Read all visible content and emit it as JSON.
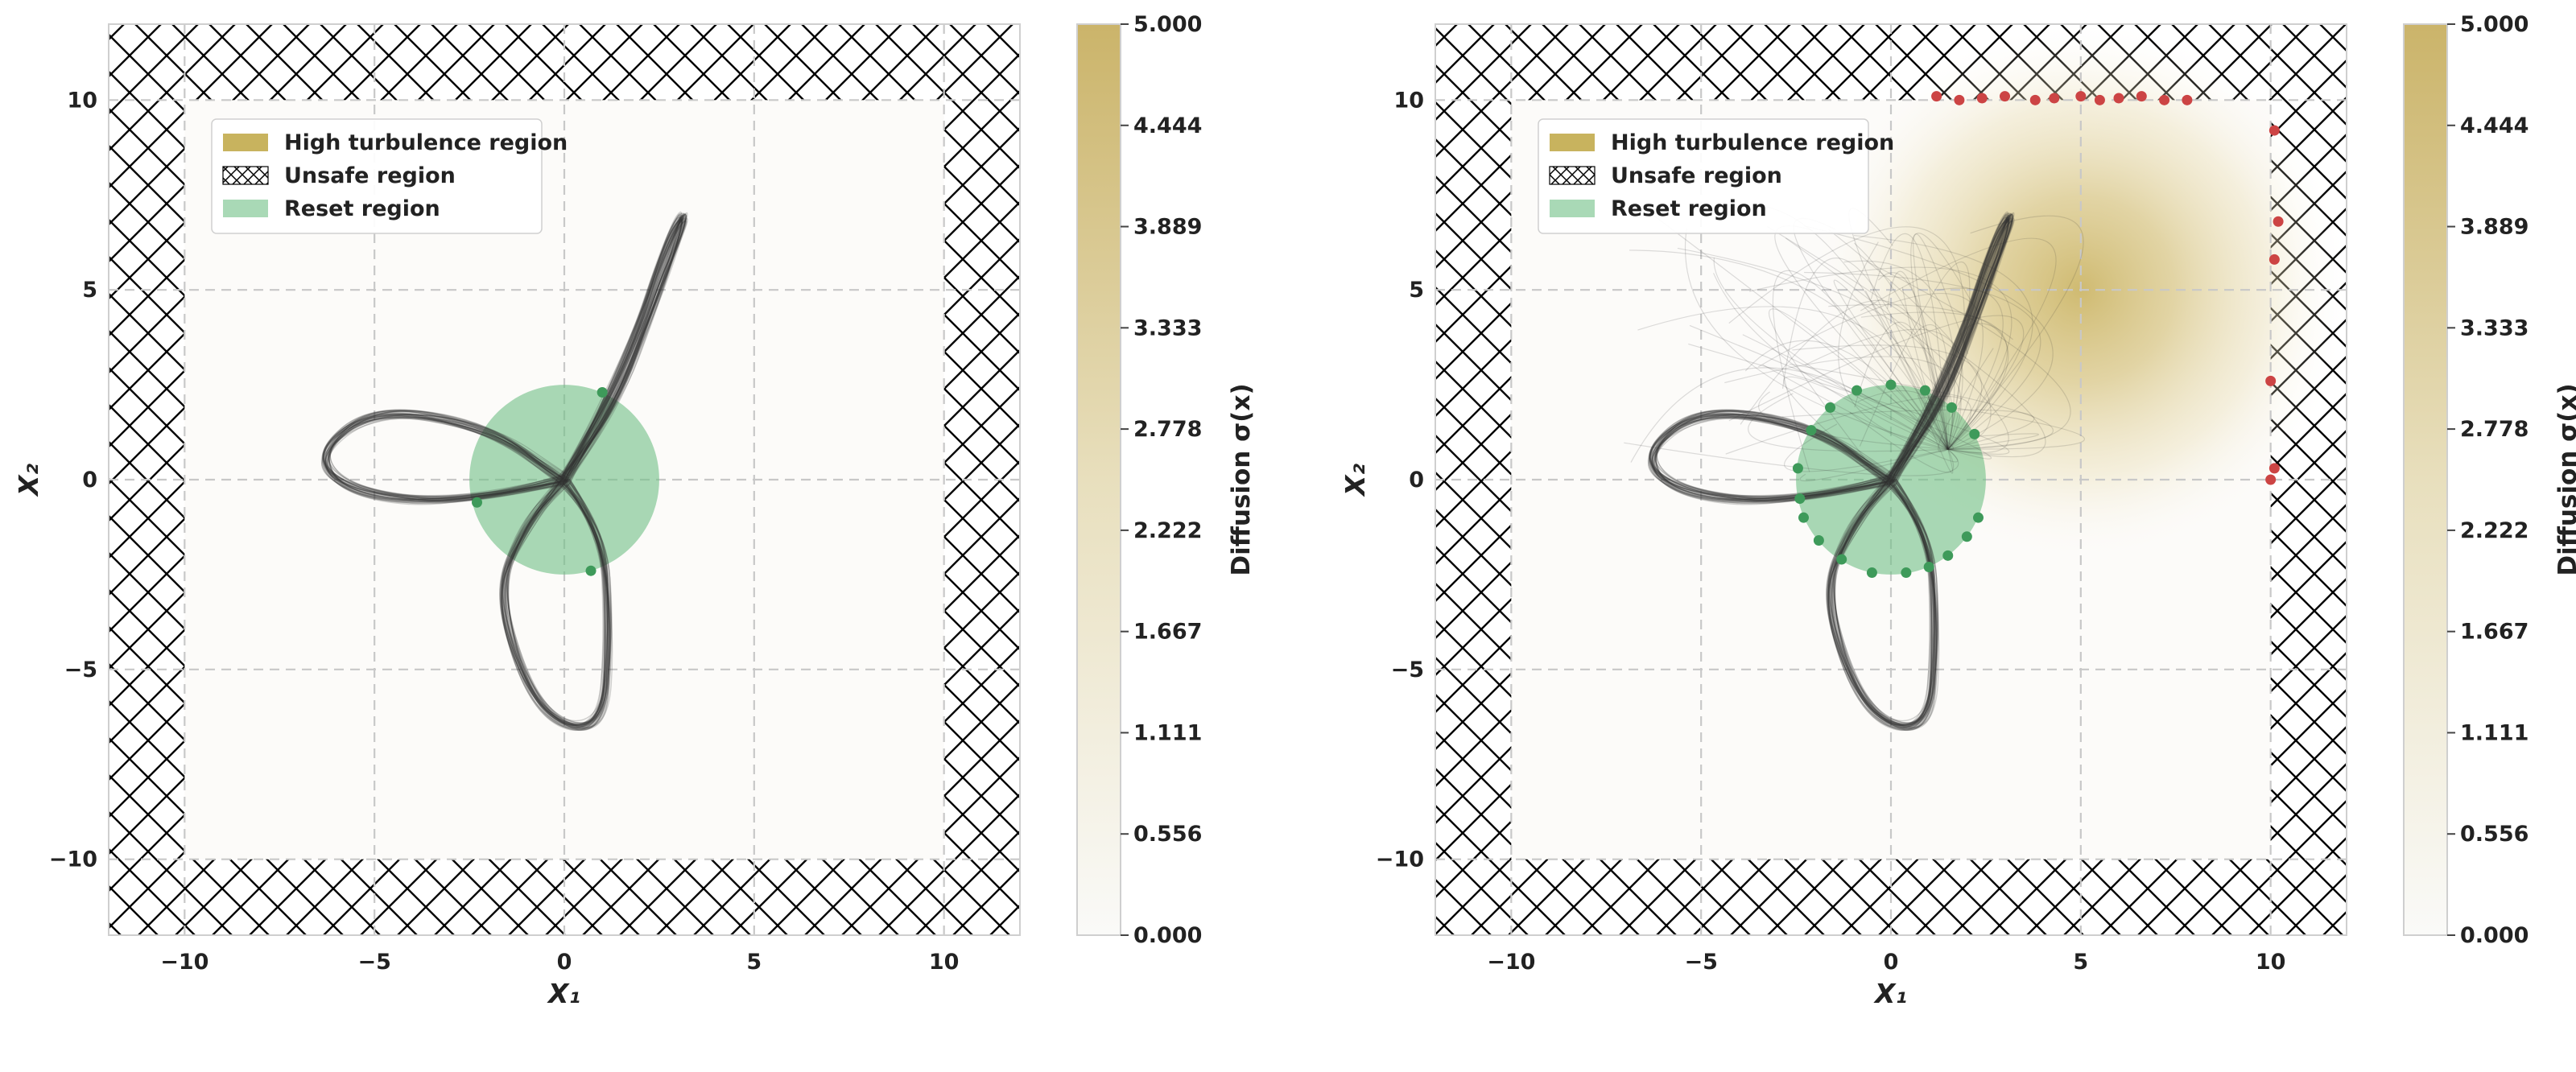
{
  "chart_data": [
    {
      "type": "scatter",
      "panel": "left",
      "title": "",
      "xlabel": "X₁",
      "ylabel": "X₂",
      "xlim": [
        -12,
        12
      ],
      "ylim": [
        -12,
        12
      ],
      "xticks": [
        "−10",
        "−5",
        "0",
        "5",
        "10"
      ],
      "yticks": [
        "−10",
        "−5",
        "0",
        "5",
        "10"
      ],
      "grid": true,
      "legend_position": "upper-left",
      "legend": [
        "High turbulence region",
        "Unsafe region",
        "Reset region"
      ],
      "colors": {
        "turbulence": "#c8b35e",
        "reset": "#6fbf85",
        "trajectory": "#333333",
        "reset_point": "#3e9a5a",
        "unsafe_point": "#cc4444"
      },
      "unsafe_boundary": 10,
      "reset_region": {
        "center": [
          0,
          0
        ],
        "radius": 2.5
      },
      "turbulence": null,
      "trajectories": "three-lobed closed trajectories (approx. 60 sample paths) starting from reset circle",
      "reset_points": [
        [
          1.0,
          2.3
        ],
        [
          -2.3,
          -0.6
        ],
        [
          0.7,
          -2.4
        ]
      ],
      "unsafe_points": [],
      "colorbar": {
        "label": "Diffusion σ(x)",
        "min": 0.0,
        "max": 5.0,
        "ticks": [
          "5.000",
          "4.444",
          "3.889",
          "3.333",
          "2.778",
          "2.222",
          "1.667",
          "1.111",
          "0.556",
          "0.000"
        ]
      }
    },
    {
      "type": "scatter",
      "panel": "right",
      "title": "",
      "xlabel": "X₁",
      "ylabel": "X₂",
      "xlim": [
        -12,
        12
      ],
      "ylim": [
        -12,
        12
      ],
      "xticks": [
        "−10",
        "−5",
        "0",
        "5",
        "10"
      ],
      "yticks": [
        "−10",
        "−5",
        "0",
        "5",
        "10"
      ],
      "grid": true,
      "legend_position": "upper-left",
      "legend": [
        "High turbulence region",
        "Unsafe region",
        "Reset region"
      ],
      "colors": {
        "turbulence": "#c8b35e",
        "reset": "#6fbf85",
        "trajectory": "#333333",
        "reset_point": "#3e9a5a",
        "unsafe_point": "#cc4444"
      },
      "unsafe_boundary": 10,
      "reset_region": {
        "center": [
          0,
          0
        ],
        "radius": 2.5
      },
      "turbulence": {
        "center": [
          5,
          5
        ],
        "peak_sigma": 5.0
      },
      "trajectories": "three-lobed trajectories plus turbulent paths scattered around high-turbulence region",
      "reset_points": [
        [
          0.0,
          2.5
        ],
        [
          -0.9,
          2.35
        ],
        [
          0.9,
          2.35
        ],
        [
          -1.6,
          1.9
        ],
        [
          1.6,
          1.9
        ],
        [
          -2.1,
          1.3
        ],
        [
          2.2,
          1.2
        ],
        [
          -2.45,
          0.3
        ],
        [
          -2.4,
          -0.5
        ],
        [
          -2.3,
          -1.0
        ],
        [
          -1.9,
          -1.6
        ],
        [
          -1.3,
          -2.1
        ],
        [
          -0.5,
          -2.45
        ],
        [
          0.4,
          -2.45
        ],
        [
          1.0,
          -2.3
        ],
        [
          1.5,
          -2.0
        ],
        [
          2.0,
          -1.5
        ],
        [
          2.3,
          -1.0
        ]
      ],
      "unsafe_points": [
        [
          1.2,
          10.1
        ],
        [
          1.8,
          10.0
        ],
        [
          2.4,
          10.05
        ],
        [
          3.0,
          10.1
        ],
        [
          3.8,
          10.0
        ],
        [
          4.3,
          10.05
        ],
        [
          5.0,
          10.1
        ],
        [
          5.5,
          10.0
        ],
        [
          6.0,
          10.05
        ],
        [
          6.6,
          10.1
        ],
        [
          7.2,
          10.0
        ],
        [
          7.8,
          10.0
        ],
        [
          10.1,
          9.2
        ],
        [
          10.2,
          6.8
        ],
        [
          10.1,
          5.8
        ],
        [
          10.0,
          2.6
        ],
        [
          10.1,
          0.3
        ],
        [
          10.0,
          0.0
        ]
      ],
      "colorbar": {
        "label": "Diffusion σ(x)",
        "min": 0.0,
        "max": 5.0,
        "ticks": [
          "5.000",
          "4.444",
          "3.889",
          "3.333",
          "2.778",
          "2.222",
          "1.667",
          "1.111",
          "0.556",
          "0.000"
        ]
      }
    }
  ]
}
